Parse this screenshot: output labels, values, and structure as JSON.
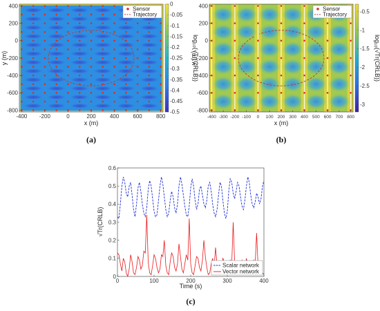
{
  "panels": [
    {
      "id": "a",
      "caption": "(a)",
      "chart_data": {
        "type": "heatmap",
        "xlabel": "x (m)",
        "ylabel": "y (m)",
        "colorbar_label": "log₁₀(√Tr(CRLB))",
        "xlim": [
          -420,
          820
        ],
        "ylim": [
          -820,
          420
        ],
        "xticks": [
          "-400",
          "-200",
          "0",
          "200",
          "400",
          "600",
          "800"
        ],
        "yticks": [
          "-800",
          "-600",
          "-400",
          "-200",
          "0",
          "200",
          "400"
        ],
        "cbar_range": [
          -0.5,
          0.0
        ],
        "cbar_ticks": [
          "0",
          "-0.05",
          "-0.1",
          "-0.15",
          "-0.2",
          "-0.25",
          "-0.3",
          "-0.35",
          "-0.4",
          "-0.45",
          "-0.5"
        ],
        "legend": [
          "Sensor",
          "Trajectory"
        ],
        "sensor_grid": {
          "x_start": -400,
          "x_step": 100,
          "x_count": 13,
          "y_start": -800,
          "y_step": 100,
          "y_count": 13
        },
        "trajectory": {
          "center": [
            200,
            -200
          ],
          "rx": 370,
          "ry": 320
        }
      }
    },
    {
      "id": "b",
      "caption": "(b)",
      "chart_data": {
        "type": "heatmap",
        "xlabel": "x (m)",
        "ylabel": "y (m)",
        "colorbar_label": "log₁₀(√Tr(CRLB))",
        "xlim": [
          -420,
          820
        ],
        "ylim": [
          -820,
          420
        ],
        "xticks": [
          "-400",
          "-300",
          "-200",
          "-100",
          "0",
          "100",
          "200",
          "300",
          "400",
          "500",
          "600",
          "700",
          "800"
        ],
        "yticks": [
          "-800",
          "-600",
          "-400",
          "-200",
          "0",
          "200",
          "400"
        ],
        "cbar_range": [
          -3.2,
          -0.3
        ],
        "cbar_ticks": [
          "-0.5",
          "-1",
          "-1.5",
          "-2",
          "-2.5",
          "-3"
        ],
        "legend": [
          "Sensor",
          "Trajectory"
        ],
        "sensor_grid": {
          "x_start": -400,
          "x_step": 200,
          "x_count": 7,
          "y_start": -800,
          "y_step": 200,
          "y_count": 7
        },
        "trajectory": {
          "center": [
            200,
            -200
          ],
          "rx": 370,
          "ry": 320
        }
      }
    },
    {
      "id": "c",
      "caption": "(c)",
      "chart_data": {
        "type": "line",
        "xlabel": "Time (s)",
        "ylabel": "√Tr(CRLB)",
        "xlim": [
          0,
          400
        ],
        "ylim": [
          0,
          0.6
        ],
        "xticks": [
          "0",
          "100",
          "200",
          "300",
          "400"
        ],
        "yticks": [
          "0",
          "0.1",
          "0.2",
          "0.3",
          "0.4",
          "0.5",
          "0.6"
        ],
        "legend_position": "bottom-right",
        "series": [
          {
            "name": "Scalar network",
            "color": "#1f2fd6",
            "style": "dashed",
            "x": [
              0,
              4,
              8,
              12,
              16,
              20,
              24,
              28,
              32,
              36,
              40,
              44,
              48,
              52,
              56,
              60,
              64,
              68,
              72,
              76,
              80,
              84,
              88,
              92,
              96,
              100,
              104,
              108,
              112,
              116,
              120,
              124,
              128,
              132,
              136,
              140,
              144,
              148,
              152,
              156,
              160,
              164,
              168,
              172,
              176,
              180,
              184,
              188,
              192,
              196,
              200,
              204,
              208,
              212,
              216,
              220,
              224,
              228,
              232,
              236,
              240,
              244,
              248,
              252,
              256,
              260,
              264,
              268,
              272,
              276,
              280,
              284,
              288,
              292,
              296,
              300,
              304,
              308,
              312,
              316,
              320,
              324,
              328,
              332,
              336,
              340,
              344,
              348,
              352,
              356,
              360,
              364,
              368,
              372,
              376,
              380,
              384,
              388,
              392,
              396,
              400
            ],
            "y": [
              0.33,
              0.32,
              0.4,
              0.5,
              0.55,
              0.52,
              0.46,
              0.44,
              0.5,
              0.52,
              0.45,
              0.37,
              0.33,
              0.4,
              0.49,
              0.52,
              0.47,
              0.4,
              0.35,
              0.33,
              0.38,
              0.48,
              0.53,
              0.5,
              0.43,
              0.36,
              0.33,
              0.34,
              0.42,
              0.5,
              0.55,
              0.51,
              0.44,
              0.37,
              0.33,
              0.35,
              0.42,
              0.47,
              0.44,
              0.38,
              0.35,
              0.4,
              0.5,
              0.55,
              0.51,
              0.45,
              0.39,
              0.34,
              0.33,
              0.39,
              0.49,
              0.54,
              0.5,
              0.42,
              0.37,
              0.4,
              0.48,
              0.5,
              0.45,
              0.4,
              0.38,
              0.42,
              0.5,
              0.52,
              0.47,
              0.4,
              0.35,
              0.33,
              0.37,
              0.45,
              0.52,
              0.5,
              0.42,
              0.35,
              0.32,
              0.36,
              0.47,
              0.54,
              0.52,
              0.46,
              0.43,
              0.47,
              0.52,
              0.5,
              0.44,
              0.39,
              0.37,
              0.42,
              0.5,
              0.55,
              0.52,
              0.45,
              0.4,
              0.38,
              0.41,
              0.46,
              0.44,
              0.4,
              0.43,
              0.5,
              0.53
            ]
          },
          {
            "name": "Vector network",
            "color": "#e8161a",
            "style": "solid",
            "x": [
              0,
              4,
              8,
              12,
              16,
              20,
              24,
              28,
              32,
              36,
              40,
              44,
              48,
              52,
              56,
              60,
              64,
              68,
              72,
              76,
              80,
              84,
              88,
              92,
              96,
              100,
              104,
              108,
              112,
              116,
              120,
              124,
              128,
              132,
              136,
              140,
              144,
              148,
              152,
              156,
              160,
              164,
              168,
              172,
              176,
              180,
              184,
              188,
              192,
              196,
              200,
              204,
              208,
              212,
              216,
              220,
              224,
              228,
              232,
              236,
              240,
              244,
              248,
              252,
              256,
              260,
              264,
              268,
              272,
              276,
              280,
              284,
              288,
              292,
              296,
              300,
              304,
              308,
              312,
              316,
              320,
              324,
              328,
              332,
              336,
              340,
              344,
              348,
              352,
              356,
              360,
              364,
              368,
              372,
              376,
              380,
              384,
              388,
              392,
              396,
              400
            ],
            "y": [
              0.13,
              0.12,
              0.07,
              0.03,
              0.1,
              0.08,
              0.02,
              0.0,
              0.04,
              0.12,
              0.08,
              0.02,
              0.01,
              0.05,
              0.11,
              0.09,
              0.04,
              0.06,
              0.14,
              0.13,
              0.34,
              0.08,
              0.02,
              0.01,
              0.06,
              0.12,
              0.1,
              0.05,
              0.02,
              0.04,
              0.12,
              0.11,
              0.2,
              0.06,
              0.02,
              0.01,
              0.08,
              0.13,
              0.11,
              0.05,
              0.03,
              0.07,
              0.18,
              0.11,
              0.04,
              0.02,
              0.07,
              0.12,
              0.09,
              0.32,
              0.07,
              0.02,
              0.01,
              0.06,
              0.11,
              0.1,
              0.05,
              0.03,
              0.09,
              0.2,
              0.11,
              0.05,
              0.01,
              0.02,
              0.07,
              0.1,
              0.05,
              0.16,
              0.06,
              0.02,
              0.01,
              0.05,
              0.1,
              0.08,
              0.03,
              0.01,
              0.04,
              0.09,
              0.07,
              0.3,
              0.08,
              0.03,
              0.01,
              0.02,
              0.06,
              0.09,
              0.07,
              0.03,
              0.1,
              0.06,
              0.02,
              0.01,
              0.05,
              0.09,
              0.07,
              0.24,
              0.06,
              0.02,
              0.04,
              0.02,
              0.01
            ]
          }
        ]
      }
    }
  ]
}
